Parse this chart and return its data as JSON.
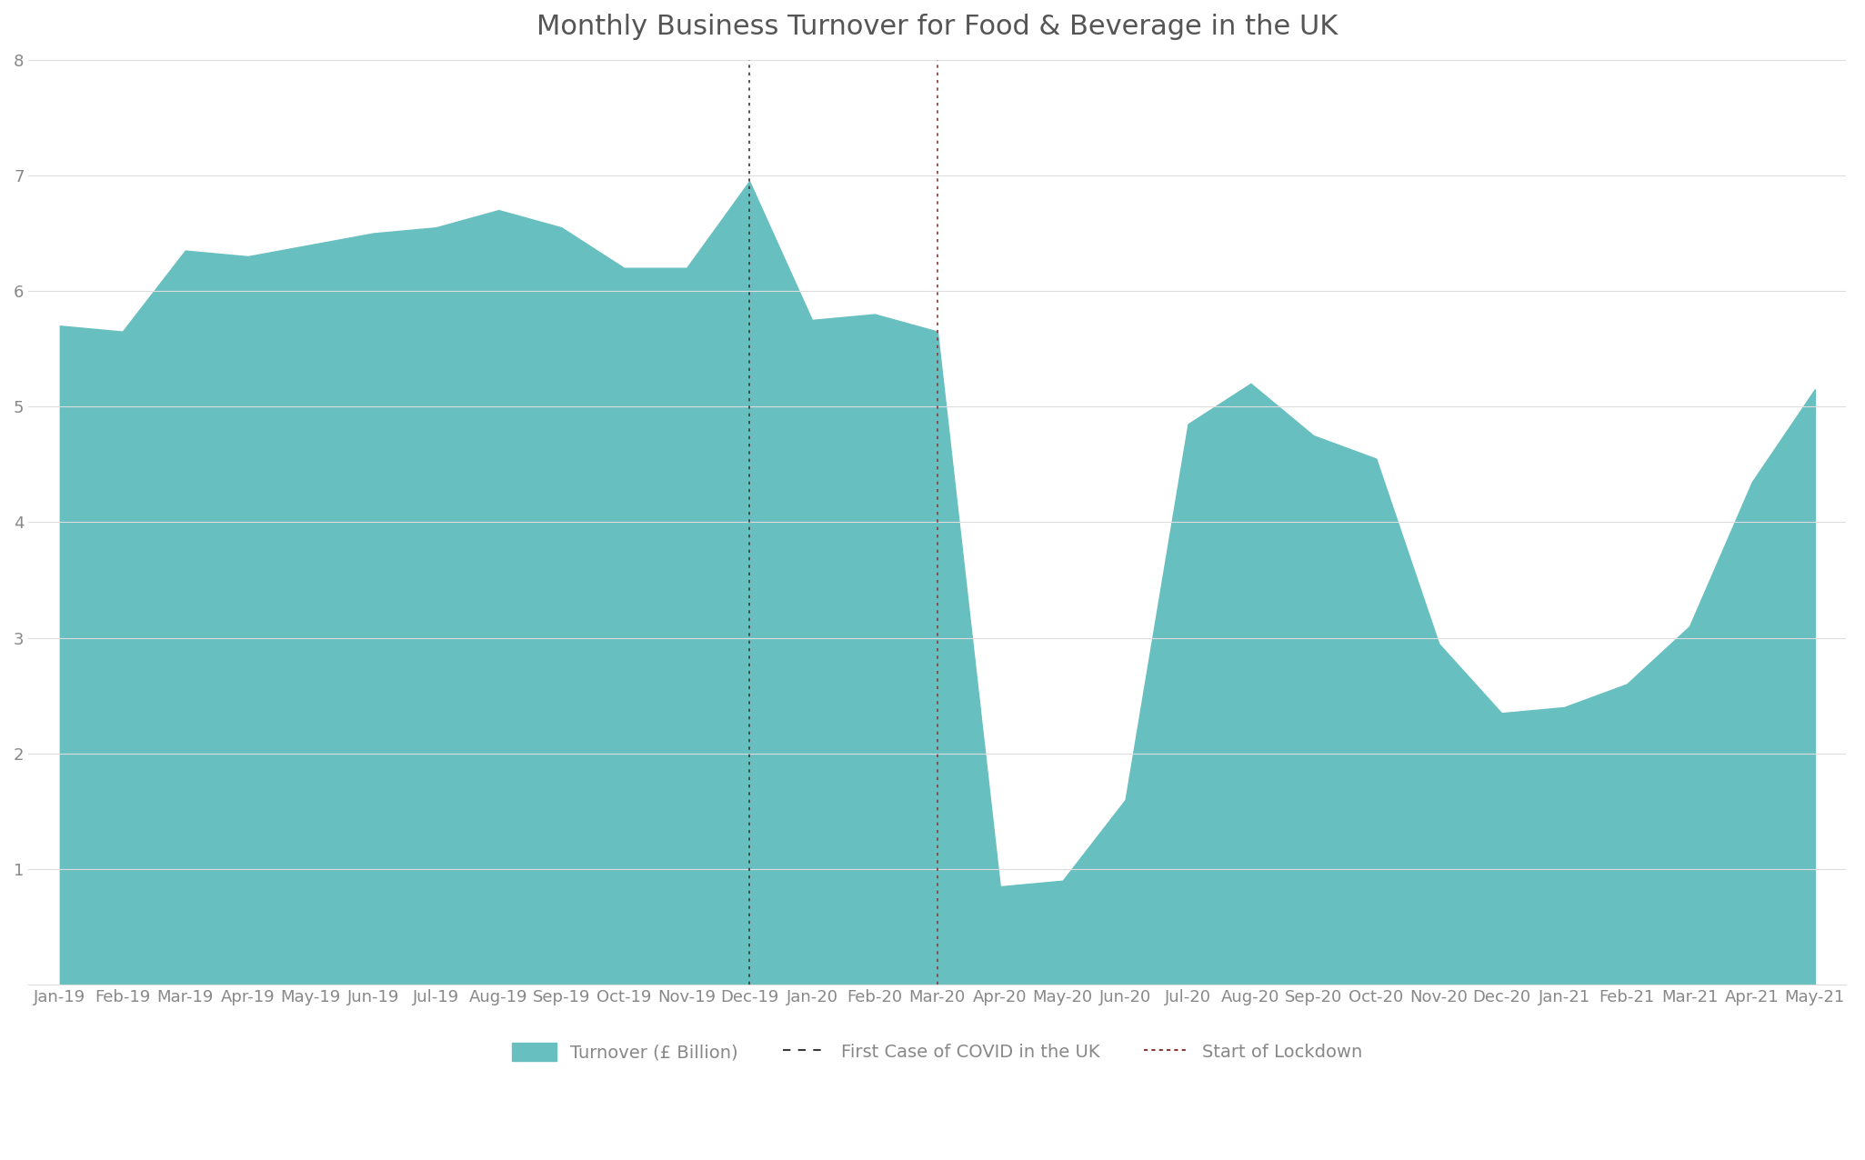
{
  "title": "Monthly Business Turnover for Food & Beverage in the UK",
  "title_fontsize": 22,
  "background_color": "#ffffff",
  "area_color": "#68bfc0",
  "area_alpha": 1.0,
  "line_color": "#68bfc0",
  "covid_line_color": "#3a3a3a",
  "lockdown_line_color": "#8b3a3a",
  "ylabel": "",
  "xlabel": "",
  "ylim": [
    0,
    8
  ],
  "yticks": [
    1,
    2,
    3,
    4,
    5,
    6,
    7,
    8
  ],
  "labels": [
    "Jan-19",
    "Feb-19",
    "Mar-19",
    "Apr-19",
    "May-19",
    "Jun-19",
    "Jul-19",
    "Aug-19",
    "Sep-19",
    "Oct-19",
    "Nov-19",
    "Dec-19",
    "Jan-20",
    "Feb-20",
    "Mar-20",
    "Apr-20",
    "May-20",
    "Jun-20",
    "Jul-20",
    "Aug-20",
    "Sep-20",
    "Oct-20",
    "Nov-20",
    "Dec-20",
    "Jan-21",
    "Feb-21",
    "Mar-21",
    "Apr-21",
    "May-21"
  ],
  "values": [
    5.7,
    5.65,
    6.35,
    6.3,
    6.4,
    6.5,
    6.55,
    6.7,
    6.55,
    6.2,
    6.2,
    6.95,
    5.75,
    5.8,
    5.65,
    0.85,
    0.9,
    1.6,
    4.85,
    5.2,
    4.75,
    4.55,
    2.95,
    2.35,
    2.4,
    2.6,
    3.1,
    4.35,
    5.15
  ],
  "covid_index": 11,
  "lockdown_index": 14,
  "legend_labels": [
    "Turnover (£ Billion)",
    "First Case of COVID in the UK",
    "Start of Lockdown"
  ],
  "grid_color": "#dddddd",
  "tick_color": "#888888",
  "tick_fontsize": 13
}
